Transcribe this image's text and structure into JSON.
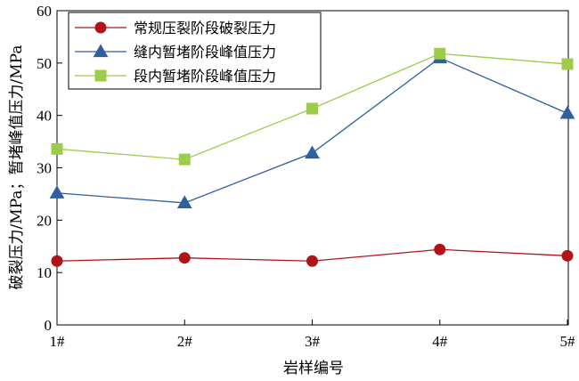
{
  "chart_data": {
    "type": "line",
    "xlabel": "岩样编号",
    "ylabel": "破裂压力/MPa；暂堵峰值压力/MPa",
    "categories": [
      "1#",
      "2#",
      "3#",
      "4#",
      "5#"
    ],
    "ylim": [
      0,
      60
    ],
    "yticks": [
      0,
      10,
      20,
      30,
      40,
      50,
      60
    ],
    "grid": false,
    "legend_position": "top-left",
    "series": [
      {
        "name": "常规压裂阶段破裂压力",
        "values": [
          12.2,
          12.8,
          12.2,
          14.4,
          13.2
        ],
        "color": "#b01418",
        "marker": "circle"
      },
      {
        "name": "缝内暂堵阶段峰值压力",
        "values": [
          25.2,
          23.3,
          32.8,
          51.0,
          40.4
        ],
        "color": "#2e5f9e",
        "marker": "triangle"
      },
      {
        "name": "段内暂堵阶段峰值压力",
        "values": [
          33.6,
          31.6,
          41.3,
          51.8,
          49.8
        ],
        "color": "#9ccc4a",
        "marker": "square"
      }
    ]
  }
}
